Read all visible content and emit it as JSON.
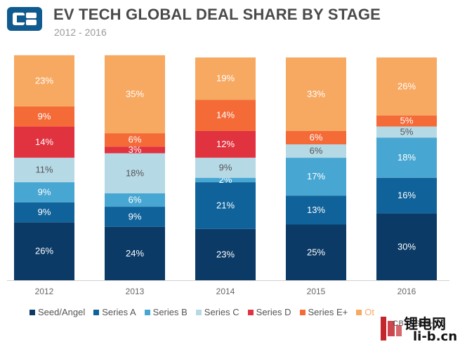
{
  "header": {
    "title": "EV TECH GLOBAL DEAL SHARE BY STAGE",
    "subtitle": "2012 - 2016"
  },
  "chart_data": {
    "type": "bar",
    "stacked": true,
    "title": "EV TECH GLOBAL DEAL SHARE BY STAGE",
    "subtitle": "2012 - 2016",
    "categories": [
      "2012",
      "2013",
      "2014",
      "2015",
      "2016"
    ],
    "ylim": [
      0,
      100
    ],
    "series": [
      {
        "name": "Seed/Angel",
        "color": "#0b3a66",
        "values": [
          26,
          24,
          23,
          25,
          30
        ]
      },
      {
        "name": "Series A",
        "color": "#10629a",
        "values": [
          9,
          9,
          21,
          13,
          16
        ]
      },
      {
        "name": "Series B",
        "color": "#48a7d2",
        "values": [
          9,
          6,
          2,
          17,
          18
        ]
      },
      {
        "name": "Series C",
        "color": "#b6d9e6",
        "values": [
          11,
          18,
          9,
          6,
          5
        ]
      },
      {
        "name": "Series D",
        "color": "#e0323f",
        "values": [
          14,
          3,
          12,
          0,
          0
        ]
      },
      {
        "name": "Series E+",
        "color": "#f46b38",
        "values": [
          9,
          6,
          14,
          6,
          5
        ]
      },
      {
        "name": "Other",
        "color": "#f7a962",
        "values": [
          23,
          35,
          19,
          33,
          26
        ]
      }
    ],
    "legend_visible_labels": [
      "Seed/Angel",
      "Series A",
      "Series B",
      "Series C",
      "Series D",
      "Series E+",
      "Ot"
    ],
    "legend": "bottom"
  },
  "watermark": {
    "brand_text": "CB INSIGHTS",
    "site_cn": "锂电网",
    "site_url": "li-b.cn"
  }
}
